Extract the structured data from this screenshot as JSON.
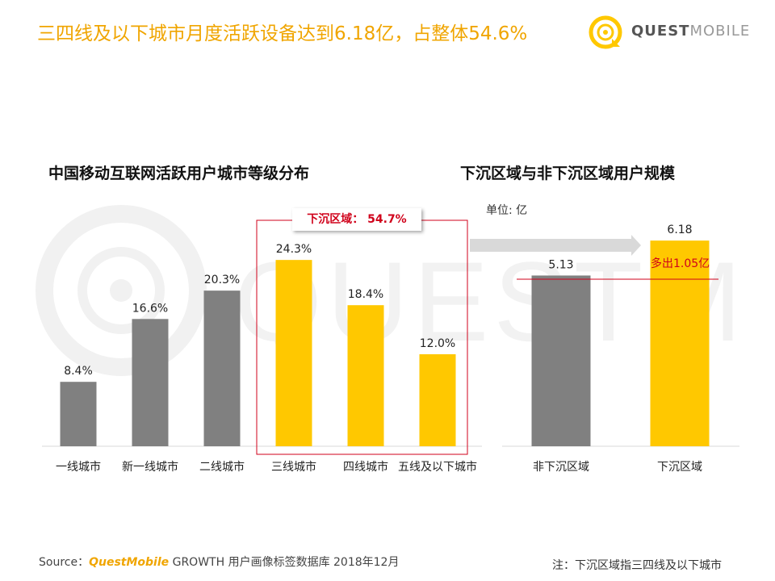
{
  "header": {
    "title": "三四线及以下城市月度活跃设备达到6.18亿，占整体54.6%",
    "logo_bold": "QUEST",
    "logo_light": "MOBILE"
  },
  "watermark_text": "QUESTMOBILE",
  "chart_data": [
    {
      "type": "bar",
      "title": "中国移动互联网活跃用户城市等级分布",
      "categories": [
        "一线城市",
        "新一线城市",
        "二线城市",
        "三线城市",
        "四线城市",
        "五线及以下城市"
      ],
      "values": [
        8.4,
        16.6,
        20.3,
        24.3,
        18.4,
        12.0
      ],
      "value_labels": [
        "8.4%",
        "16.6%",
        "20.3%",
        "24.3%",
        "18.4%",
        "12.0%"
      ],
      "colors": [
        "#808080",
        "#808080",
        "#808080",
        "#ffc800",
        "#ffc800",
        "#ffc800"
      ],
      "ylim": [
        0,
        26
      ],
      "grid": false,
      "annotation": "下沉区域：  54.7%"
    },
    {
      "type": "bar",
      "title": "下沉区域与非下沉区域用户规模",
      "unit": "单位: 亿",
      "categories": [
        "非下沉区域",
        "下沉区域"
      ],
      "values": [
        5.13,
        6.18
      ],
      "value_labels": [
        "5.13",
        "6.18"
      ],
      "colors": [
        "#808080",
        "#ffc800"
      ],
      "ylim": [
        0,
        6.45
      ],
      "grid": false,
      "annotation": "多出1.05亿"
    }
  ],
  "footer": {
    "source_label": "Source：",
    "source_brand": "QuestMobile",
    "source_rest": " GROWTH 用户画像标签数据库 2018年12月",
    "note": "注：下沉区域指三四线及以下城市"
  }
}
